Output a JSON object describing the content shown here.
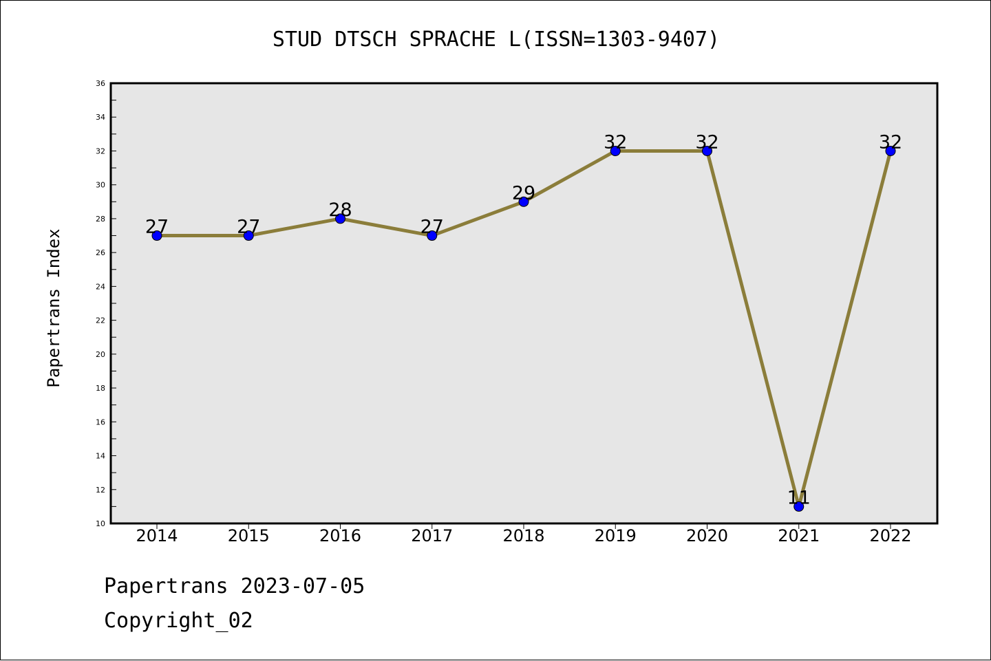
{
  "chart_data": {
    "type": "line",
    "title": "STUD DTSCH SPRACHE L(ISSN=1303-9407)",
    "xlabel": "",
    "ylabel": "Papertrans Index",
    "categories": [
      "2014",
      "2015",
      "2016",
      "2017",
      "2018",
      "2019",
      "2020",
      "2021",
      "2022"
    ],
    "series": [
      {
        "values": [
          27,
          27,
          28,
          27,
          29,
          32,
          32,
          11,
          32
        ]
      }
    ],
    "data_labels": [
      "27",
      "27",
      "28",
      "27",
      "29",
      "32",
      "32",
      "11",
      "32"
    ],
    "ylim": [
      10,
      36
    ],
    "y_ticks": [
      "10",
      "12",
      "14",
      "16",
      "18",
      "20",
      "22",
      "24",
      "26",
      "28",
      "30",
      "32",
      "34",
      "36"
    ],
    "grid": false,
    "legend": "none",
    "colors": {
      "line": "#8B7D3A",
      "marker": "#0000FF",
      "plot_background": "#E6E6E6"
    }
  },
  "footer": {
    "source_line": "Papertrans 2023-07-05",
    "copyright_line": "Copyright_02"
  }
}
